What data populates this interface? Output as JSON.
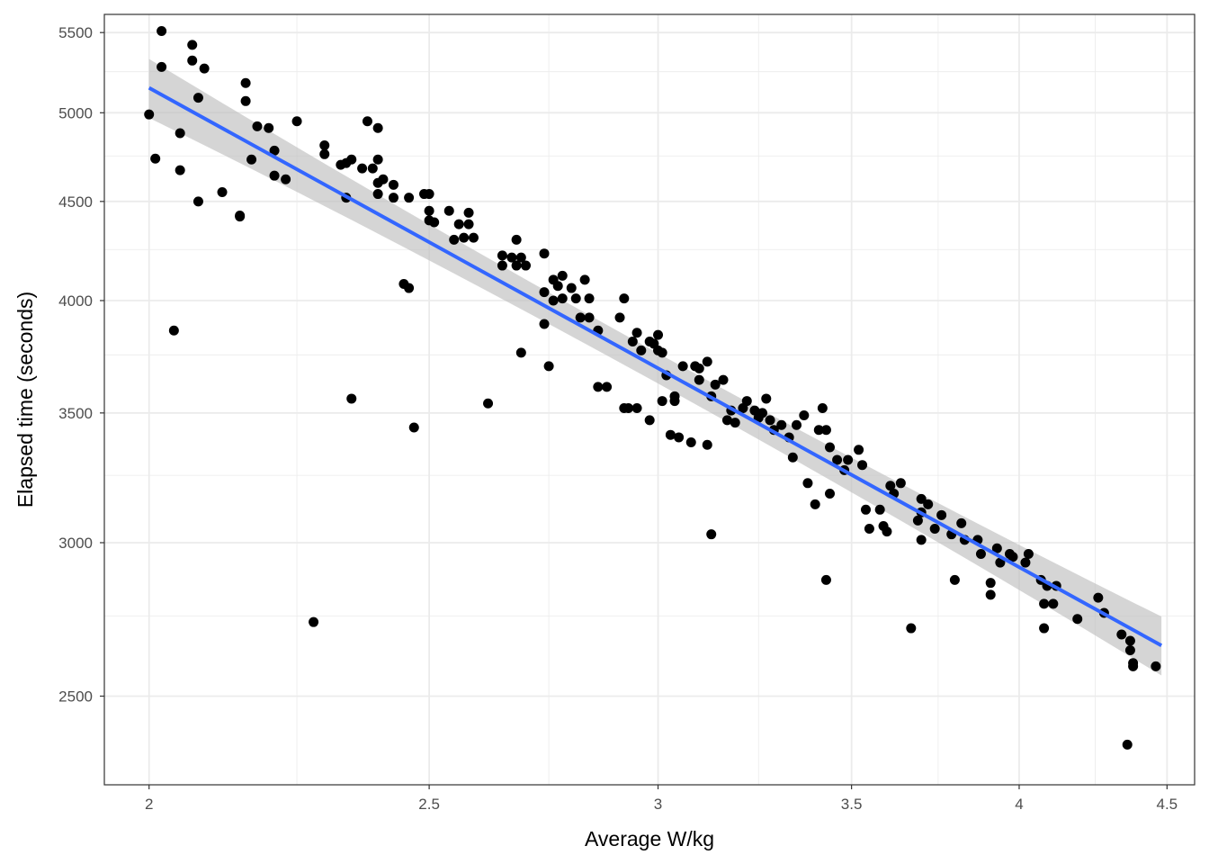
{
  "chart_data": {
    "type": "scatter",
    "title": "",
    "xlabel": "Average W/kg",
    "ylabel": "Elapsed time (seconds)",
    "xscale": "log",
    "yscale": "log",
    "xlim": [
      1.93,
      4.6
    ],
    "ylim": [
      2250,
      5620
    ],
    "xticks": [
      2,
      2.5,
      3,
      3.5,
      4,
      4.5
    ],
    "xtick_labels": [
      "2",
      "2.5",
      "3",
      "3.5",
      "4",
      "4.5"
    ],
    "xminor": [
      2.25,
      2.75,
      3.25,
      3.75,
      4.25
    ],
    "yticks": [
      2500,
      3000,
      3500,
      4000,
      4500,
      5000,
      5500
    ],
    "ytick_labels": [
      "2500",
      "3000",
      "3500",
      "4000",
      "4500",
      "5000",
      "5500"
    ],
    "yminor": [
      2250,
      2750,
      3250,
      3750,
      4250,
      4750,
      5250
    ],
    "grid": true,
    "legend": "none",
    "colors": {
      "points": "#000000",
      "fit_line": "#3366FF",
      "ribbon": "#BEBEBE",
      "grid": "#EBEBEB"
    },
    "fit": {
      "method": "lm",
      "x": [
        2.0,
        4.48
      ],
      "y": [
        5150,
        2655
      ],
      "ci_rel": [
        0.035,
        0.018,
        0.035
      ]
    },
    "points": [
      [
        2.0,
        4990
      ],
      [
        2.01,
        4735
      ],
      [
        2.02,
        5510
      ],
      [
        2.02,
        5280
      ],
      [
        2.04,
        3860
      ],
      [
        2.05,
        4880
      ],
      [
        2.05,
        4670
      ],
      [
        2.07,
        5420
      ],
      [
        2.07,
        5320
      ],
      [
        2.08,
        4500
      ],
      [
        2.08,
        5090
      ],
      [
        2.09,
        5270
      ],
      [
        2.12,
        4550
      ],
      [
        2.15,
        4420
      ],
      [
        2.15,
        4425
      ],
      [
        2.16,
        5180
      ],
      [
        2.16,
        5070
      ],
      [
        2.17,
        4730
      ],
      [
        2.18,
        4920
      ],
      [
        2.2,
        4910
      ],
      [
        2.21,
        4640
      ],
      [
        2.21,
        4780
      ],
      [
        2.23,
        4620
      ],
      [
        2.25,
        4950
      ],
      [
        2.28,
        2730
      ],
      [
        2.3,
        4760
      ],
      [
        2.3,
        4810
      ],
      [
        2.33,
        4700
      ],
      [
        2.34,
        4710
      ],
      [
        2.34,
        4520
      ],
      [
        2.35,
        4730
      ],
      [
        2.35,
        3560
      ],
      [
        2.37,
        4680
      ],
      [
        2.38,
        4950
      ],
      [
        2.39,
        4680
      ],
      [
        2.4,
        4600
      ],
      [
        2.4,
        4910
      ],
      [
        2.4,
        4730
      ],
      [
        2.4,
        4540
      ],
      [
        2.41,
        4620
      ],
      [
        2.43,
        4590
      ],
      [
        2.43,
        4520
      ],
      [
        2.45,
        4080
      ],
      [
        2.46,
        4060
      ],
      [
        2.46,
        4520
      ],
      [
        2.47,
        3440
      ],
      [
        2.49,
        4540
      ],
      [
        2.5,
        4540
      ],
      [
        2.5,
        4450
      ],
      [
        2.5,
        4400
      ],
      [
        2.51,
        4390
      ],
      [
        2.54,
        4450
      ],
      [
        2.55,
        4300
      ],
      [
        2.56,
        4380
      ],
      [
        2.57,
        4310
      ],
      [
        2.58,
        4440
      ],
      [
        2.58,
        4380
      ],
      [
        2.59,
        4310
      ],
      [
        2.62,
        3540
      ],
      [
        2.65,
        4170
      ],
      [
        2.65,
        4220
      ],
      [
        2.67,
        4210
      ],
      [
        2.68,
        4300
      ],
      [
        2.68,
        4170
      ],
      [
        2.69,
        4210
      ],
      [
        2.69,
        3760
      ],
      [
        2.7,
        4170
      ],
      [
        2.74,
        3890
      ],
      [
        2.74,
        4230
      ],
      [
        2.74,
        4040
      ],
      [
        2.75,
        3700
      ],
      [
        2.76,
        4000
      ],
      [
        2.76,
        4100
      ],
      [
        2.77,
        4070
      ],
      [
        2.78,
        4010
      ],
      [
        2.78,
        4120
      ],
      [
        2.8,
        4060
      ],
      [
        2.81,
        4010
      ],
      [
        2.82,
        3920
      ],
      [
        2.83,
        4100
      ],
      [
        2.84,
        4010
      ],
      [
        2.84,
        3920
      ],
      [
        2.86,
        3860
      ],
      [
        2.86,
        3610
      ],
      [
        2.88,
        3610
      ],
      [
        2.91,
        3920
      ],
      [
        2.92,
        3520
      ],
      [
        2.92,
        4010
      ],
      [
        2.93,
        3520
      ],
      [
        2.94,
        3810
      ],
      [
        2.95,
        3520
      ],
      [
        2.95,
        3850
      ],
      [
        2.96,
        3770
      ],
      [
        2.98,
        3810
      ],
      [
        2.98,
        3470
      ],
      [
        2.99,
        3800
      ],
      [
        3.0,
        3840
      ],
      [
        3.0,
        3770
      ],
      [
        3.01,
        3550
      ],
      [
        3.01,
        3760
      ],
      [
        3.02,
        3660
      ],
      [
        3.03,
        3410
      ],
      [
        3.04,
        3550
      ],
      [
        3.04,
        3570
      ],
      [
        3.05,
        3400
      ],
      [
        3.06,
        3700
      ],
      [
        3.08,
        3380
      ],
      [
        3.09,
        3700
      ],
      [
        3.1,
        3690
      ],
      [
        3.1,
        3640
      ],
      [
        3.12,
        3720
      ],
      [
        3.12,
        3370
      ],
      [
        3.13,
        3570
      ],
      [
        3.13,
        3030
      ],
      [
        3.14,
        3620
      ],
      [
        3.16,
        3640
      ],
      [
        3.17,
        3470
      ],
      [
        3.18,
        3510
      ],
      [
        3.19,
        3460
      ],
      [
        3.21,
        3520
      ],
      [
        3.22,
        3550
      ],
      [
        3.24,
        3510
      ],
      [
        3.25,
        3480
      ],
      [
        3.26,
        3500
      ],
      [
        3.27,
        3560
      ],
      [
        3.28,
        3470
      ],
      [
        3.29,
        3430
      ],
      [
        3.31,
        3450
      ],
      [
        3.33,
        3400
      ],
      [
        3.34,
        3320
      ],
      [
        3.35,
        3450
      ],
      [
        3.37,
        3490
      ],
      [
        3.38,
        3220
      ],
      [
        3.4,
        3140
      ],
      [
        3.41,
        3430
      ],
      [
        3.42,
        3520
      ],
      [
        3.43,
        3430
      ],
      [
        3.43,
        2870
      ],
      [
        3.44,
        3360
      ],
      [
        3.44,
        3180
      ],
      [
        3.46,
        3310
      ],
      [
        3.48,
        3270
      ],
      [
        3.49,
        3310
      ],
      [
        3.52,
        3350
      ],
      [
        3.53,
        3290
      ],
      [
        3.54,
        3120
      ],
      [
        3.55,
        3050
      ],
      [
        3.58,
        3120
      ],
      [
        3.59,
        3060
      ],
      [
        3.6,
        3040
      ],
      [
        3.61,
        3210
      ],
      [
        3.62,
        3180
      ],
      [
        3.64,
        3220
      ],
      [
        3.67,
        2710
      ],
      [
        3.69,
        3080
      ],
      [
        3.7,
        3110
      ],
      [
        3.7,
        3160
      ],
      [
        3.7,
        3010
      ],
      [
        3.72,
        3140
      ],
      [
        3.74,
        3050
      ],
      [
        3.76,
        3100
      ],
      [
        3.79,
        3030
      ],
      [
        3.8,
        2870
      ],
      [
        3.82,
        3070
      ],
      [
        3.83,
        3010
      ],
      [
        3.87,
        3010
      ],
      [
        3.88,
        2960
      ],
      [
        3.91,
        2860
      ],
      [
        3.91,
        2820
      ],
      [
        3.93,
        2980
      ],
      [
        3.94,
        2930
      ],
      [
        3.97,
        2960
      ],
      [
        3.98,
        2950
      ],
      [
        4.02,
        2930
      ],
      [
        4.03,
        2960
      ],
      [
        4.07,
        2870
      ],
      [
        4.08,
        2710
      ],
      [
        4.08,
        2790
      ],
      [
        4.09,
        2850
      ],
      [
        4.11,
        2790
      ],
      [
        4.12,
        2850
      ],
      [
        4.19,
        2740
      ],
      [
        4.26,
        2810
      ],
      [
        4.28,
        2760
      ],
      [
        4.34,
        2690
      ],
      [
        4.36,
        2360
      ],
      [
        4.37,
        2670
      ],
      [
        4.37,
        2640
      ],
      [
        4.38,
        2600
      ],
      [
        4.38,
        2590
      ],
      [
        4.46,
        2590
      ]
    ]
  }
}
